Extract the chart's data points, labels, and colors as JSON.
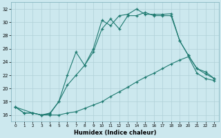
{
  "xlabel": "Humidex (Indice chaleur)",
  "bg_color": "#cce8ee",
  "grid_color": "#b0d0d8",
  "line_color": "#1e7a70",
  "xlim": [
    -0.5,
    23.5
  ],
  "ylim": [
    15.0,
    33.0
  ],
  "yticks": [
    16,
    18,
    20,
    22,
    24,
    26,
    28,
    30,
    32
  ],
  "xticks": [
    0,
    1,
    2,
    3,
    4,
    5,
    6,
    7,
    8,
    9,
    10,
    11,
    12,
    13,
    14,
    15,
    16,
    17,
    18,
    19,
    20,
    21,
    22,
    23
  ],
  "curve_bottom_x": [
    0,
    1,
    2,
    3,
    4,
    5,
    6,
    7,
    8,
    9,
    10,
    11,
    12,
    13,
    14,
    15,
    16,
    17,
    18,
    19,
    20,
    21,
    22,
    23
  ],
  "curve_bottom_y": [
    17.2,
    16.3,
    16.3,
    16.0,
    16.0,
    16.0,
    16.3,
    16.5,
    17.0,
    17.5,
    18.0,
    18.8,
    19.5,
    20.2,
    21.0,
    21.7,
    22.3,
    23.0,
    23.7,
    24.3,
    24.8,
    22.3,
    21.5,
    21.2
  ],
  "curve_mid_x": [
    0,
    1,
    2,
    3,
    4,
    5,
    6,
    7,
    8,
    9,
    10,
    11,
    12,
    13,
    14,
    15,
    16,
    17,
    18,
    19,
    20,
    21,
    22,
    23
  ],
  "curve_mid_y": [
    17.2,
    16.3,
    16.3,
    16.0,
    16.2,
    18.0,
    20.5,
    22.0,
    23.5,
    25.5,
    29.0,
    30.5,
    29.0,
    31.0,
    31.0,
    31.5,
    31.0,
    31.0,
    31.0,
    27.2,
    25.0,
    23.0,
    22.5,
    21.5
  ],
  "curve_top_x": [
    0,
    2,
    3,
    4,
    5,
    6,
    7,
    8,
    9,
    10,
    11,
    12,
    13,
    14,
    15,
    16,
    17,
    18,
    19,
    20,
    21,
    22,
    23
  ],
  "curve_top_y": [
    17.2,
    16.3,
    16.0,
    16.3,
    18.0,
    22.0,
    25.5,
    23.5,
    26.0,
    30.3,
    29.5,
    31.0,
    31.2,
    32.0,
    31.2,
    31.2,
    31.2,
    31.3,
    27.2,
    25.0,
    23.0,
    22.2,
    21.5
  ]
}
